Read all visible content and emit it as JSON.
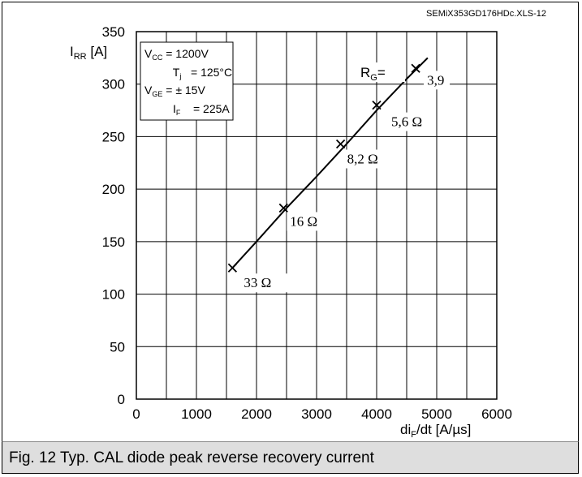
{
  "figure_id": "SEMiX353GD176HDc.XLS-12",
  "caption": "Fig. 12 Typ. CAL diode peak reverse recovery current",
  "conditions": [
    {
      "sym": "V",
      "sub": "CC",
      "val": " = 1200V"
    },
    {
      "sym": "T",
      "sub": "j",
      "val": "   = 125°C"
    },
    {
      "sym": "V",
      "sub": "GE",
      "val": " = ± 15V"
    },
    {
      "sym": "I",
      "sub": "F",
      "val": "    = 225A"
    }
  ],
  "rg_label": {
    "sym": "R",
    "sub": "G",
    "val": "="
  },
  "chart_data": {
    "type": "line",
    "xlabel": {
      "pre": "di",
      "sub": "F",
      "post": "/dt [A/µs]"
    },
    "ylabel": {
      "sym": "I",
      "sub": "RR",
      "post": " [A]"
    },
    "xlim": [
      0,
      6000
    ],
    "ylim": [
      0,
      350
    ],
    "x_ticks": [
      0,
      1000,
      2000,
      3000,
      4000,
      5000,
      6000
    ],
    "y_ticks": [
      0,
      50,
      100,
      150,
      200,
      250,
      300,
      350
    ],
    "x_minor_step": 500,
    "grid": true,
    "series": [
      {
        "x": [
          1600,
          2000,
          2500,
          3000,
          3500,
          4000,
          4500,
          4850
        ],
        "y": [
          125,
          150,
          182,
          212,
          243,
          275,
          305,
          325
        ]
      }
    ],
    "markers": [
      {
        "x": 1600,
        "y": 125,
        "label": "33 Ω"
      },
      {
        "x": 2450,
        "y": 182,
        "label": "16 Ω"
      },
      {
        "x": 3400,
        "y": 243,
        "label": "8,2 Ω"
      },
      {
        "x": 4000,
        "y": 280,
        "label": "5,6 Ω"
      },
      {
        "x": 4650,
        "y": 315,
        "label": "3,9"
      }
    ]
  }
}
